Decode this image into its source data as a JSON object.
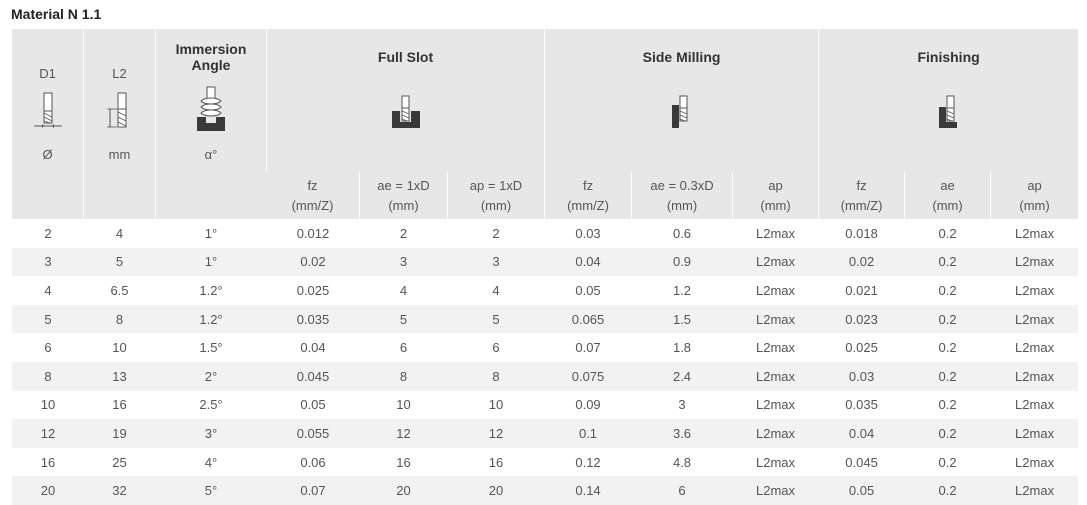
{
  "title": "Material N 1.1",
  "header": {
    "d1": {
      "label": "D1",
      "unit": "Ø",
      "icon": "end-mill-diameter-icon"
    },
    "l2": {
      "label": "L2",
      "unit": "mm",
      "icon": "end-mill-length-icon"
    },
    "immersion": {
      "label_line1": "Immersion",
      "label_line2": "Angle",
      "unit": "α°",
      "icon": "helical-immersion-icon"
    },
    "groups": [
      {
        "label": "Full Slot",
        "icon": "full-slot-icon",
        "subs": [
          {
            "line1": "fz",
            "line2": "(mm/Z)"
          },
          {
            "line1": "ae = 1xD",
            "line2": "(mm)"
          },
          {
            "line1": "ap = 1xD",
            "line2": "(mm)"
          }
        ]
      },
      {
        "label": "Side Milling",
        "icon": "side-milling-icon",
        "subs": [
          {
            "line1": "fz",
            "line2": "(mm/Z)"
          },
          {
            "line1": "ae = 0.3xD",
            "line2": "(mm)"
          },
          {
            "line1": "ap",
            "line2": "(mm)"
          }
        ]
      },
      {
        "label": "Finishing",
        "icon": "finishing-icon",
        "subs": [
          {
            "line1": "fz",
            "line2": "(mm/Z)"
          },
          {
            "line1": "ae",
            "line2": "(mm)"
          },
          {
            "line1": "ap",
            "line2": "(mm)"
          }
        ]
      }
    ]
  },
  "rows": [
    [
      "2",
      "4",
      "1°",
      "0.012",
      "2",
      "2",
      "0.03",
      "0.6",
      "L2max",
      "0.018",
      "0.2",
      "L2max"
    ],
    [
      "3",
      "5",
      "1°",
      "0.02",
      "3",
      "3",
      "0.04",
      "0.9",
      "L2max",
      "0.02",
      "0.2",
      "L2max"
    ],
    [
      "4",
      "6.5",
      "1.2°",
      "0.025",
      "4",
      "4",
      "0.05",
      "1.2",
      "L2max",
      "0.021",
      "0.2",
      "L2max"
    ],
    [
      "5",
      "8",
      "1.2°",
      "0.035",
      "5",
      "5",
      "0.065",
      "1.5",
      "L2max",
      "0.023",
      "0.2",
      "L2max"
    ],
    [
      "6",
      "10",
      "1.5°",
      "0.04",
      "6",
      "6",
      "0.07",
      "1.8",
      "L2max",
      "0.025",
      "0.2",
      "L2max"
    ],
    [
      "8",
      "13",
      "2°",
      "0.045",
      "8",
      "8",
      "0.075",
      "2.4",
      "L2max",
      "0.03",
      "0.2",
      "L2max"
    ],
    [
      "10",
      "16",
      "2.5°",
      "0.05",
      "10",
      "10",
      "0.09",
      "3",
      "L2max",
      "0.035",
      "0.2",
      "L2max"
    ],
    [
      "12",
      "19",
      "3°",
      "0.055",
      "12",
      "12",
      "0.1",
      "3.6",
      "L2max",
      "0.04",
      "0.2",
      "L2max"
    ],
    [
      "16",
      "25",
      "4°",
      "0.06",
      "16",
      "16",
      "0.12",
      "4.8",
      "L2max",
      "0.045",
      "0.2",
      "L2max"
    ],
    [
      "20",
      "32",
      "5°",
      "0.07",
      "20",
      "20",
      "0.14",
      "6",
      "L2max",
      "0.05",
      "0.2",
      "L2max"
    ]
  ]
}
